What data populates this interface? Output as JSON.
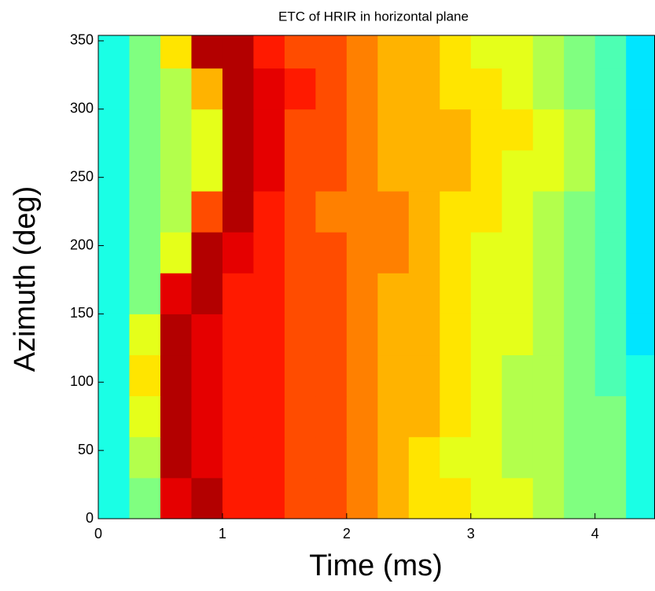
{
  "chart_data": {
    "type": "heatmap",
    "title": "ETC of HRIR in horizontal plane",
    "x_label": "Time (ms)",
    "y_label": "Azimuth (deg)",
    "x": [
      0.125,
      0.375,
      0.625,
      0.875,
      1.125,
      1.375,
      1.625,
      1.875,
      2.125,
      2.375,
      2.625,
      2.875,
      3.125,
      3.375,
      3.625,
      3.875,
      4.125,
      4.375
    ],
    "y": [
      15,
      45,
      75,
      105,
      135,
      165,
      195,
      225,
      255,
      285,
      315,
      345
    ],
    "z": [
      [
        4,
        5,
        9,
        9.5,
        8.5,
        8.5,
        8,
        8,
        7.5,
        7,
        6.5,
        6.5,
        6,
        6,
        5.5,
        5,
        5,
        4
      ],
      [
        4,
        5.5,
        9.5,
        9,
        8.5,
        8.5,
        8,
        8,
        7.5,
        7,
        6.5,
        6,
        6,
        5.5,
        5.5,
        5,
        5,
        4
      ],
      [
        4,
        6,
        9.5,
        9,
        8.5,
        8.5,
        8,
        8,
        7.5,
        7,
        7,
        6.5,
        6,
        5.5,
        5.5,
        5,
        5,
        4
      ],
      [
        4,
        6.5,
        9.5,
        9,
        8.5,
        8.5,
        8,
        8,
        7.5,
        7,
        7,
        6.5,
        6,
        5.5,
        5.5,
        5,
        4.5,
        4
      ],
      [
        4,
        6,
        9.5,
        9,
        8.5,
        8.5,
        8,
        8,
        7.5,
        7,
        7,
        6.5,
        6,
        6,
        5.5,
        5,
        4.5,
        3.5
      ],
      [
        4,
        5,
        9,
        9.5,
        8.5,
        8.5,
        8,
        8,
        7.5,
        7,
        7,
        6.5,
        6,
        6,
        5.5,
        5,
        4.5,
        3.5
      ],
      [
        4,
        5,
        6,
        9.5,
        9,
        8.5,
        8,
        8,
        7.5,
        7.5,
        7,
        6.5,
        6,
        6,
        5.5,
        5,
        4.5,
        3.5
      ],
      [
        4,
        5,
        5.5,
        8,
        9.5,
        8.5,
        8,
        7.5,
        7.5,
        7.5,
        7,
        6.5,
        6.5,
        6,
        5.5,
        5,
        4.5,
        3.5
      ],
      [
        4,
        5,
        5.5,
        6,
        9.5,
        9,
        8,
        8,
        7.5,
        7,
        7,
        7,
        6.5,
        6,
        6,
        5.5,
        4.5,
        3.5
      ],
      [
        4,
        5,
        5.5,
        6,
        9.5,
        9,
        8,
        8,
        7.5,
        7,
        7,
        7,
        6.5,
        6.5,
        6,
        5.5,
        4.5,
        3.5
      ],
      [
        4,
        5,
        5.5,
        7,
        9.5,
        9,
        8.5,
        8,
        7.5,
        7,
        7,
        6.5,
        6.5,
        6,
        5.5,
        5,
        4.5,
        3.5
      ],
      [
        4,
        5,
        6.5,
        9.5,
        9.5,
        8.5,
        8,
        8,
        7.5,
        7,
        7,
        6.5,
        6,
        6,
        5.5,
        5,
        4.5,
        3.5
      ]
    ],
    "clim": [
      0,
      10
    ],
    "colormap": "jet",
    "xlim": [
      0,
      4.48
    ],
    "ylim": [
      0,
      354
    ],
    "xticks": [
      0,
      1,
      2,
      3,
      4
    ],
    "yticks": [
      0,
      50,
      100,
      150,
      200,
      250,
      300,
      350
    ]
  }
}
